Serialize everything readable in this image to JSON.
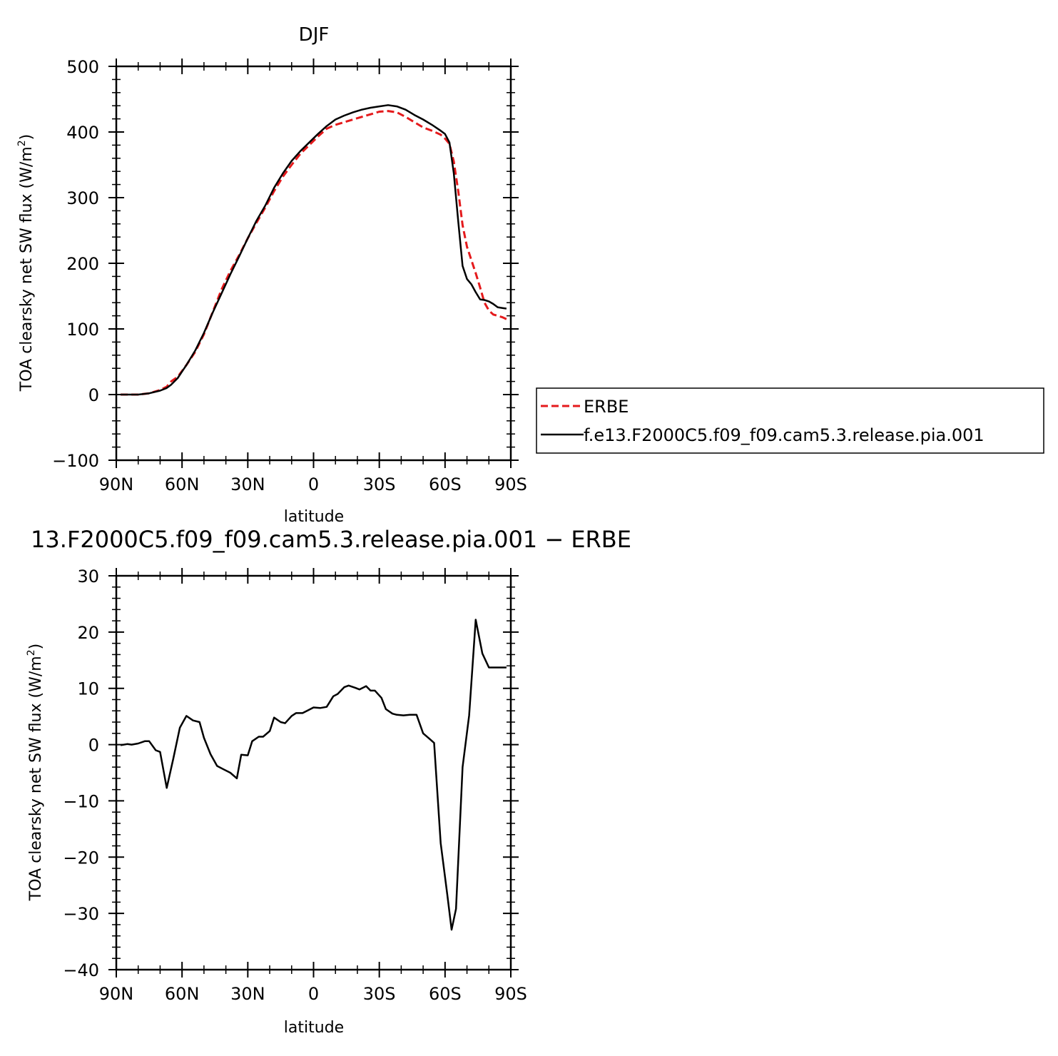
{
  "chart_data": [
    {
      "type": "line",
      "title": "DJF",
      "xlabel": "latitude",
      "ylabel_main": "TOA clearsky net SW flux (W/m",
      "ylabel_sup": "2",
      "ylabel_close": ")",
      "xlim": [
        90,
        -90
      ],
      "ylim": [
        -100,
        500
      ],
      "x_ticks": [
        {
          "value": 90,
          "label": "90N"
        },
        {
          "value": 60,
          "label": "60N"
        },
        {
          "value": 30,
          "label": "30N"
        },
        {
          "value": 0,
          "label": "0"
        },
        {
          "value": -30,
          "label": "30S"
        },
        {
          "value": -60,
          "label": "60S"
        },
        {
          "value": -90,
          "label": "90S"
        }
      ],
      "y_ticks": [
        -100,
        0,
        100,
        200,
        300,
        400,
        500
      ],
      "y_tick_labels": [
        "−100",
        "0",
        "100",
        "200",
        "300",
        "400",
        "500"
      ],
      "legend_position": "right, outside the plot area",
      "series": [
        {
          "name": "ERBE",
          "color": "#e41a1c",
          "style": "dashed",
          "x": [
            88,
            85,
            80,
            75,
            70,
            67,
            65,
            62,
            58,
            54,
            50,
            46,
            42,
            38,
            34,
            30,
            26,
            22,
            18,
            14,
            10,
            6,
            2,
            -2,
            -6,
            -10,
            -14,
            -18,
            -22,
            -26,
            -30,
            -34,
            -38,
            -42,
            -46,
            -50,
            -54,
            -58,
            -60,
            -62,
            -64,
            -66,
            -68,
            -70,
            -72,
            -74,
            -76,
            -78,
            -80,
            -82,
            -84,
            -86,
            -88
          ],
          "y": [
            0,
            0,
            0,
            2,
            7,
            12,
            20,
            27,
            45,
            65,
            92,
            126,
            160,
            188,
            212,
            238,
            262,
            285,
            310,
            332,
            350,
            367,
            380,
            393,
            405,
            411,
            415,
            419,
            423,
            427,
            431,
            432,
            430,
            423,
            415,
            407,
            402,
            396,
            390,
            382,
            355,
            310,
            258,
            225,
            205,
            185,
            163,
            140,
            128,
            122,
            120,
            118,
            115
          ]
        },
        {
          "name": "f.e13.F2000C5.f09_f09.cam5.3.release.pia.001",
          "color": "#000000",
          "style": "solid",
          "x": [
            88,
            85,
            80,
            75,
            70,
            67,
            65,
            62,
            58,
            54,
            50,
            46,
            42,
            38,
            34,
            30,
            26,
            22,
            18,
            14,
            10,
            6,
            2,
            -2,
            -6,
            -10,
            -14,
            -18,
            -22,
            -26,
            -30,
            -34,
            -38,
            -42,
            -46,
            -50,
            -54,
            -58,
            -60,
            -62,
            -64,
            -66,
            -68,
            -70,
            -72,
            -74,
            -76,
            -78,
            -80,
            -82,
            -84,
            -86,
            -88
          ],
          "y": [
            0,
            0,
            0,
            2,
            6,
            10,
            15,
            25,
            45,
            67,
            94,
            125,
            154,
            183,
            210,
            238,
            265,
            288,
            315,
            337,
            356,
            371,
            384,
            397,
            409,
            419,
            425,
            430,
            434,
            437,
            439,
            441,
            439,
            434,
            426,
            419,
            411,
            402,
            397,
            384,
            337,
            264,
            196,
            176,
            168,
            156,
            145,
            144,
            142,
            138,
            133,
            132,
            131
          ]
        }
      ]
    },
    {
      "type": "line",
      "title": "13.F2000C5.f09_f09.cam5.3.release.pia.001 − ERBE",
      "xlabel": "latitude",
      "ylabel_main": "TOA clearsky net SW flux (W/m",
      "ylabel_sup": "2",
      "ylabel_close": ")",
      "xlim": [
        90,
        -90
      ],
      "ylim": [
        -40,
        30
      ],
      "x_ticks": [
        {
          "value": 90,
          "label": "90N"
        },
        {
          "value": 60,
          "label": "60N"
        },
        {
          "value": 30,
          "label": "30N"
        },
        {
          "value": 0,
          "label": "0"
        },
        {
          "value": -30,
          "label": "30S"
        },
        {
          "value": -60,
          "label": "60S"
        },
        {
          "value": -90,
          "label": "90S"
        }
      ],
      "y_ticks": [
        -40,
        -30,
        -20,
        -10,
        0,
        10,
        20,
        30
      ],
      "y_tick_labels": [
        "−40",
        "−30",
        "−20",
        "−10",
        "0",
        "10",
        "20",
        "30"
      ],
      "series": [
        {
          "name": "",
          "color": "#000000",
          "style": "solid",
          "x": [
            88,
            85,
            83,
            80,
            77,
            75,
            72,
            70,
            67,
            64,
            61,
            58,
            55,
            52,
            50,
            47,
            44,
            41,
            38,
            35,
            33,
            30,
            28,
            25,
            23,
            20,
            18,
            15,
            13,
            10,
            8,
            5,
            3,
            0,
            -3,
            -6,
            -9,
            -11,
            -14,
            -16,
            -19,
            -21,
            -24,
            -26,
            -28,
            -31,
            -33,
            -36,
            -38,
            -41,
            -44,
            -47,
            -50,
            -53,
            -55,
            -58,
            -61,
            -63,
            -65,
            -68,
            -71,
            -74,
            -77,
            -80,
            -83,
            -86,
            -88
          ],
          "y": [
            -0.1,
            0.1,
            0,
            0.2,
            0.6,
            0.6,
            -1,
            -1.3,
            -7.7,
            -2.5,
            3,
            5.1,
            4.3,
            4,
            1.2,
            -1.7,
            -3.8,
            -4.4,
            -5,
            -6,
            -1.8,
            -1.9,
            0.6,
            1.4,
            1.4,
            2.4,
            4.8,
            4,
            3.8,
            5.1,
            5.6,
            5.6,
            6,
            6.6,
            6.5,
            6.7,
            8.6,
            9,
            10.2,
            10.5,
            10.1,
            9.8,
            10.4,
            9.6,
            9.6,
            8.3,
            6.3,
            5.5,
            5.3,
            5.2,
            5.3,
            5.3,
            2,
            1,
            0.3,
            -17.5,
            -26.6,
            -32.9,
            -29.2,
            -4,
            5.2,
            22.2,
            16.2,
            13.7,
            13.7,
            13.7,
            13.7
          ]
        }
      ]
    }
  ]
}
